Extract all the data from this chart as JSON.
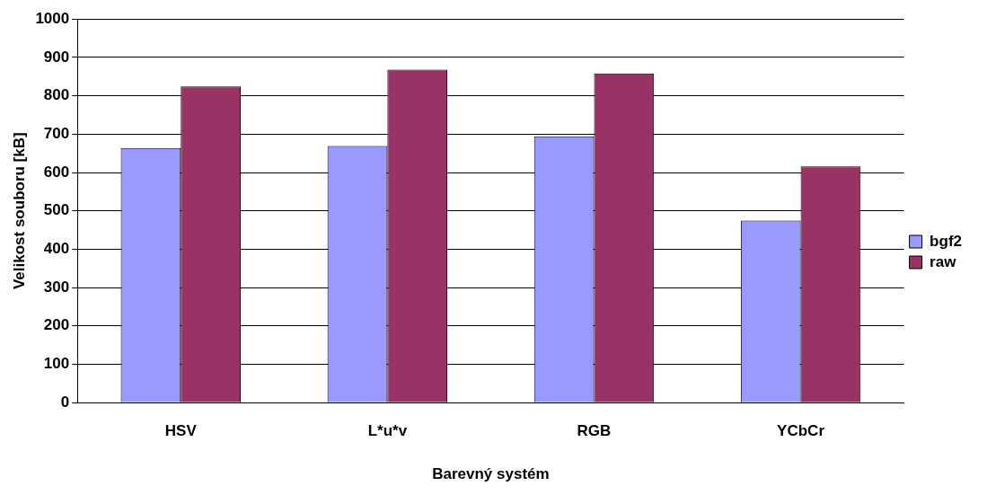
{
  "chart_data": {
    "type": "bar",
    "xlabel": "Barevný systém",
    "ylabel": "Velikost souboru [kB]",
    "categories": [
      "HSV",
      "L*u*v",
      "RGB",
      "YCbCr"
    ],
    "series": [
      {
        "name": "bgf2",
        "color": "#9999ff",
        "values": [
          664,
          669,
          694,
          475
        ]
      },
      {
        "name": "raw",
        "color": "#993366",
        "values": [
          824,
          868,
          858,
          616
        ]
      }
    ],
    "ylim": [
      0,
      1000
    ],
    "yticks": [
      0,
      100,
      200,
      300,
      400,
      500,
      600,
      700,
      800,
      900,
      1000
    ],
    "grid": "y",
    "legend": "right"
  }
}
